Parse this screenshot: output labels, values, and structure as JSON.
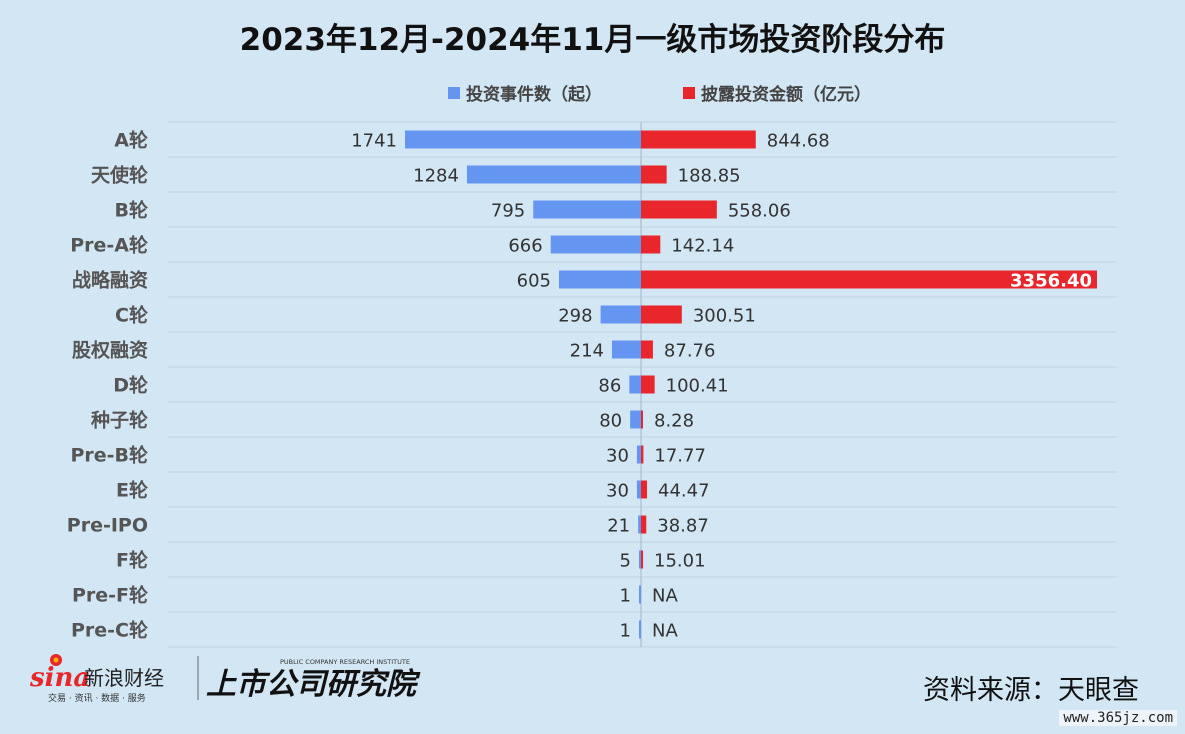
{
  "chart_data": {
    "type": "bar",
    "title": "2023年12月-2024年11月一级市场投资阶段分布",
    "categories": [
      "A轮",
      "天使轮",
      "B轮",
      "Pre-A轮",
      "战略融资",
      "C轮",
      "股权融资",
      "D轮",
      "种子轮",
      "Pre-B轮",
      "E轮",
      "Pre-IPO",
      "F轮",
      "Pre-F轮",
      "Pre-C轮"
    ],
    "series": [
      {
        "name": "投资事件数（起）",
        "color": "#6495f0",
        "values": [
          1741,
          1284,
          795,
          666,
          605,
          298,
          214,
          86,
          80,
          30,
          30,
          21,
          5,
          1,
          1
        ],
        "labels": [
          "1741",
          "1284",
          "795",
          "666",
          "605",
          "298",
          "214",
          "86",
          "80",
          "30",
          "30",
          "21",
          "5",
          "1",
          "1"
        ]
      },
      {
        "name": "披露投资金额（亿元）",
        "color": "#e8262c",
        "values": [
          844.68,
          188.85,
          558.06,
          142.14,
          3356.4,
          300.51,
          87.76,
          100.41,
          8.28,
          17.77,
          44.47,
          38.87,
          15.01,
          null,
          null
        ],
        "labels": [
          "844.68",
          "188.85",
          "558.06",
          "142.14",
          "3356.40",
          "300.51",
          "87.76",
          "100.41",
          "8.28",
          "17.77",
          "44.47",
          "38.87",
          "15.01",
          "NA",
          "NA"
        ]
      }
    ],
    "legend_position": "top-center",
    "grid": true
  },
  "footer": {
    "sina_brand": "新浪财经",
    "sina_tagline": "交易 · 资讯 · 数据 · 服务",
    "institute_en": "PUBLIC COMPANY RESEARCH INSTITUTE",
    "institute_cn": "上市公司研究院",
    "source": "资料来源：天眼查",
    "watermark": "www.365jz.com"
  },
  "colors": {
    "background": "#d3e6f3",
    "blue": "#6495f0",
    "red": "#e8262c"
  }
}
